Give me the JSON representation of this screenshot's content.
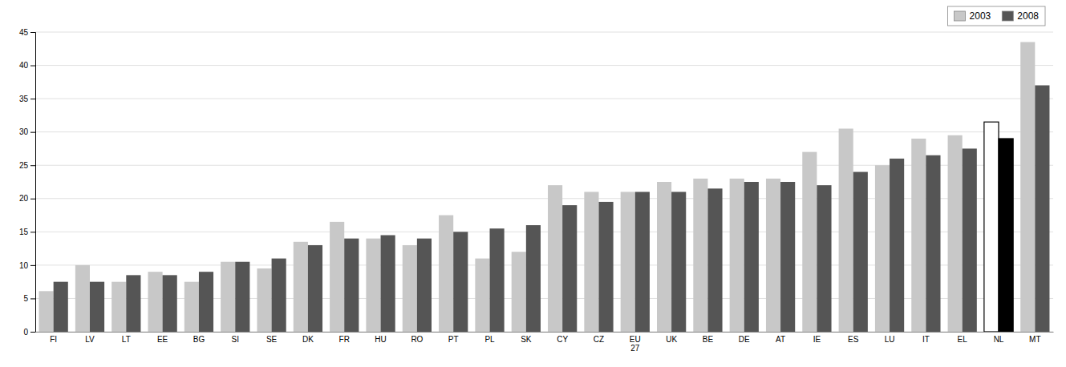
{
  "chart_data": {
    "type": "bar",
    "categories": [
      "FI",
      "LV",
      "LT",
      "EE",
      "BG",
      "SI",
      "SE",
      "DK",
      "FR",
      "HU",
      "RO",
      "PT",
      "PL",
      "SK",
      "CY",
      "CZ",
      "EU\n27",
      "UK",
      "BE",
      "DE",
      "AT",
      "IE",
      "ES",
      "LU",
      "IT",
      "EL",
      "NL",
      "MT"
    ],
    "series": [
      {
        "name": "2003",
        "color": "#c8c8c8",
        "colors": [
          "#c8c8c8",
          "#c8c8c8",
          "#c8c8c8",
          "#c8c8c8",
          "#c8c8c8",
          "#c8c8c8",
          "#c8c8c8",
          "#c8c8c8",
          "#c8c8c8",
          "#c8c8c8",
          "#c8c8c8",
          "#c8c8c8",
          "#c8c8c8",
          "#c8c8c8",
          "#c8c8c8",
          "#c8c8c8",
          "#c8c8c8",
          "#c8c8c8",
          "#c8c8c8",
          "#c8c8c8",
          "#c8c8c8",
          "#c8c8c8",
          "#c8c8c8",
          "#c8c8c8",
          "#c8c8c8",
          "#c8c8c8",
          "#ffffff",
          "#c8c8c8"
        ],
        "values": [
          6.1,
          10.0,
          7.5,
          9.0,
          7.5,
          10.5,
          9.5,
          13.5,
          16.5,
          14.0,
          13.0,
          17.5,
          11.0,
          12.0,
          22.0,
          21.0,
          21.0,
          22.5,
          23.0,
          23.0,
          23.0,
          27.0,
          30.5,
          25.0,
          29.0,
          29.5,
          31.5,
          43.5
        ]
      },
      {
        "name": "2008",
        "color": "#555555",
        "colors": [
          "#555555",
          "#555555",
          "#555555",
          "#555555",
          "#555555",
          "#555555",
          "#555555",
          "#555555",
          "#555555",
          "#555555",
          "#555555",
          "#555555",
          "#555555",
          "#555555",
          "#555555",
          "#555555",
          "#555555",
          "#555555",
          "#555555",
          "#555555",
          "#555555",
          "#555555",
          "#555555",
          "#555555",
          "#555555",
          "#555555",
          "#000000",
          "#555555"
        ],
        "values": [
          7.5,
          7.5,
          8.5,
          8.5,
          9.0,
          10.5,
          11.0,
          13.0,
          14.0,
          14.5,
          14.0,
          15.0,
          15.5,
          16.0,
          19.0,
          19.5,
          21.0,
          21.0,
          21.5,
          22.5,
          22.5,
          22.0,
          24.0,
          26.0,
          26.5,
          27.5,
          29.0,
          37.0
        ]
      }
    ],
    "ylim": [
      0,
      45
    ],
    "yticks": [
      0,
      5,
      10,
      15,
      20,
      25,
      30,
      35,
      40,
      45
    ],
    "grid": true,
    "legend": "upper right"
  }
}
